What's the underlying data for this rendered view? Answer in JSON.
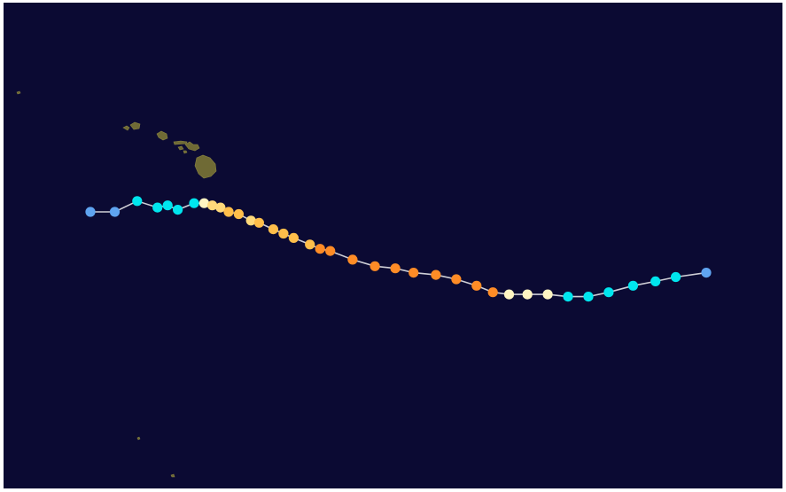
{
  "map": {
    "ocean_color": "#0b0a33",
    "border_color": "#ffffff",
    "track_line_color": "#cfcfd6",
    "land_color": "#6f6a35",
    "land_highlight": "#8a8440"
  },
  "legend_colors": {
    "extratropical_or_low": "#5fa4f0",
    "tropical_storm": "#00e5ee",
    "category_1": "#fff5c2",
    "category_2": "#ffd97a",
    "category_3": "#ffbe4a",
    "category_4": "#ff8c26"
  },
  "track_points": [
    {
      "lon": -159.8,
      "lat": 23.6,
      "category": "extratropical_or_low"
    },
    {
      "lon": -158.6,
      "lat": 23.6,
      "category": "extratropical_or_low"
    },
    {
      "lon": -157.5,
      "lat": 24.1,
      "category": "tropical_storm"
    },
    {
      "lon": -156.5,
      "lat": 23.8,
      "category": "tropical_storm"
    },
    {
      "lon": -156.0,
      "lat": 23.9,
      "category": "tropical_storm"
    },
    {
      "lon": -155.5,
      "lat": 23.7,
      "category": "tropical_storm"
    },
    {
      "lon": -154.7,
      "lat": 24.0,
      "category": "tropical_storm"
    },
    {
      "lon": -154.2,
      "lat": 24.0,
      "category": "category_1"
    },
    {
      "lon": -153.8,
      "lat": 23.9,
      "category": "category_2"
    },
    {
      "lon": -153.4,
      "lat": 23.8,
      "category": "category_2"
    },
    {
      "lon": -153.0,
      "lat": 23.6,
      "category": "category_3"
    },
    {
      "lon": -152.5,
      "lat": 23.5,
      "category": "category_3"
    },
    {
      "lon": -151.9,
      "lat": 23.2,
      "category": "category_2"
    },
    {
      "lon": -151.5,
      "lat": 23.1,
      "category": "category_3"
    },
    {
      "lon": -150.8,
      "lat": 22.8,
      "category": "category_3"
    },
    {
      "lon": -150.3,
      "lat": 22.6,
      "category": "category_3"
    },
    {
      "lon": -149.8,
      "lat": 22.4,
      "category": "category_3"
    },
    {
      "lon": -149.0,
      "lat": 22.1,
      "category": "category_3"
    },
    {
      "lon": -148.5,
      "lat": 21.9,
      "category": "category_4"
    },
    {
      "lon": -148.0,
      "lat": 21.8,
      "category": "category_4"
    },
    {
      "lon": -146.9,
      "lat": 21.4,
      "category": "category_4"
    },
    {
      "lon": -145.8,
      "lat": 21.1,
      "category": "category_4"
    },
    {
      "lon": -144.8,
      "lat": 21.0,
      "category": "category_4"
    },
    {
      "lon": -143.9,
      "lat": 20.8,
      "category": "category_4"
    },
    {
      "lon": -142.8,
      "lat": 20.7,
      "category": "category_4"
    },
    {
      "lon": -141.8,
      "lat": 20.5,
      "category": "category_4"
    },
    {
      "lon": -140.8,
      "lat": 20.2,
      "category": "category_4"
    },
    {
      "lon": -140.0,
      "lat": 19.9,
      "category": "category_4"
    },
    {
      "lon": -139.2,
      "lat": 19.8,
      "category": "category_1"
    },
    {
      "lon": -138.3,
      "lat": 19.8,
      "category": "category_1"
    },
    {
      "lon": -137.3,
      "lat": 19.8,
      "category": "category_1"
    },
    {
      "lon": -136.3,
      "lat": 19.7,
      "category": "tropical_storm"
    },
    {
      "lon": -135.3,
      "lat": 19.7,
      "category": "tropical_storm"
    },
    {
      "lon": -134.3,
      "lat": 19.9,
      "category": "tropical_storm"
    },
    {
      "lon": -133.1,
      "lat": 20.2,
      "category": "tropical_storm"
    },
    {
      "lon": -132.0,
      "lat": 20.4,
      "category": "tropical_storm"
    },
    {
      "lon": -131.0,
      "lat": 20.6,
      "category": "tropical_storm"
    },
    {
      "lon": -129.5,
      "lat": 20.8,
      "category": "extratropical_or_low"
    }
  ]
}
